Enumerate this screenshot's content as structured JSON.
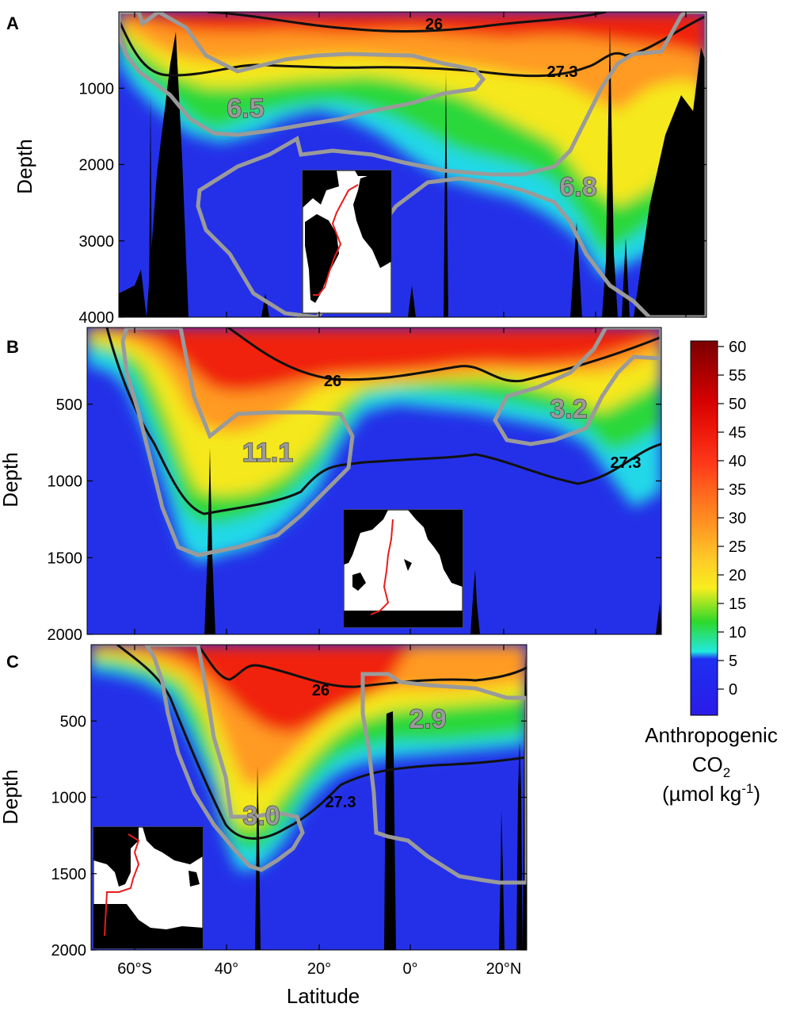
{
  "chart_data": {
    "type": "heatmap",
    "xlabel": "Latitude",
    "colorbar": {
      "title_line1": "Anthropogenic",
      "title_line2": "CO",
      "title_sub": "2",
      "title_line3": "(µmol kg",
      "title_sup": "-1",
      "title_end": ")",
      "ticks": [
        60,
        55,
        50,
        45,
        40,
        35,
        30,
        25,
        20,
        15,
        10,
        5,
        0
      ],
      "colors": [
        "#7a0000",
        "#a80000",
        "#d60000",
        "#f01c0c",
        "#ff3a1a",
        "#ff6a1e",
        "#ff9a22",
        "#ffc828",
        "#f8ee1e",
        "#b8e81c",
        "#2ed82a",
        "#22e8e0",
        "#1e2ff0"
      ]
    },
    "x_ticks": [
      "60°S",
      "40°",
      "20°",
      "0°",
      "20°N"
    ],
    "panels": [
      {
        "id": "A",
        "ylabel": "Depth",
        "ylim": [
          0,
          4000
        ],
        "y_ticks": [
          1000,
          2000,
          3000,
          4000
        ],
        "isopycnals": [
          "26",
          "27.3"
        ],
        "inventories": [
          "6.5",
          "6.8"
        ]
      },
      {
        "id": "B",
        "ylabel": "Depth",
        "ylim": [
          0,
          2000
        ],
        "y_ticks": [
          500,
          1000,
          1500,
          2000
        ],
        "isopycnals": [
          "26",
          "27.3"
        ],
        "inventories": [
          "11.1",
          "3.2"
        ]
      },
      {
        "id": "C",
        "ylabel": "Depth",
        "ylim": [
          0,
          2000
        ],
        "y_ticks": [
          500,
          1000,
          1500,
          2000
        ],
        "isopycnals": [
          "26",
          "27.3"
        ],
        "inventories": [
          "3.0",
          "2.9"
        ]
      }
    ]
  }
}
